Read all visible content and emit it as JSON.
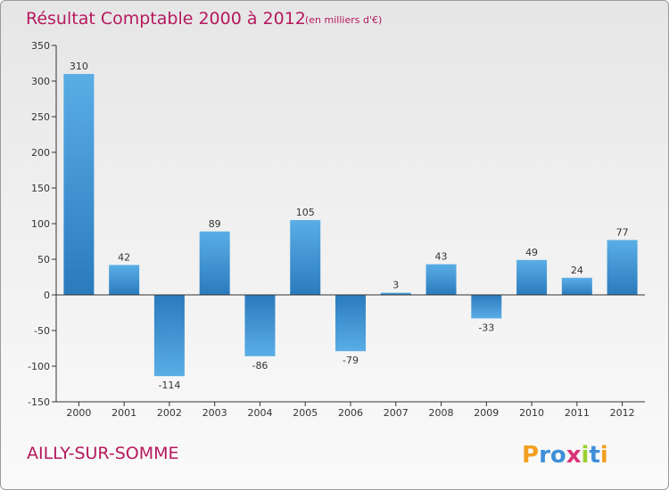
{
  "chart_data": {
    "type": "bar",
    "title": "Résultat Comptable 2000 à 2012",
    "subtitle": "(en milliers d'€)",
    "categories": [
      "2000",
      "2001",
      "2002",
      "2003",
      "2004",
      "2005",
      "2006",
      "2007",
      "2008",
      "2009",
      "2010",
      "2011",
      "2012"
    ],
    "values": [
      310,
      42,
      -114,
      89,
      -86,
      105,
      -79,
      3,
      43,
      -33,
      49,
      24,
      77
    ],
    "data_labels": [
      "310",
      "42",
      "-114",
      "89",
      "-86",
      "105",
      "-79",
      "3",
      "43",
      "-33",
      "49",
      "24",
      "77"
    ],
    "yticks": [
      "350",
      "300",
      "250",
      "200",
      "150",
      "100",
      "50",
      "0",
      "-50",
      "-100",
      "-150"
    ],
    "ylim": [
      -150,
      350
    ],
    "xlabel": "",
    "ylabel": "",
    "grid": false
  },
  "footer": {
    "city": "AILLY-SUR-SOMME",
    "logo_letters": [
      "P",
      "r",
      "o",
      "x",
      "i",
      "t",
      "i"
    ]
  },
  "colors": {
    "title": "#b5195e",
    "bar_light": "#5aaee6",
    "bar_dark": "#2a7bbd",
    "axis": "#333333",
    "logo": [
      "#f0a020",
      "#3f8fd8",
      "#3f8fd8",
      "#d8337a",
      "#9ad02f",
      "#3f8fd8",
      "#f0a020"
    ]
  }
}
